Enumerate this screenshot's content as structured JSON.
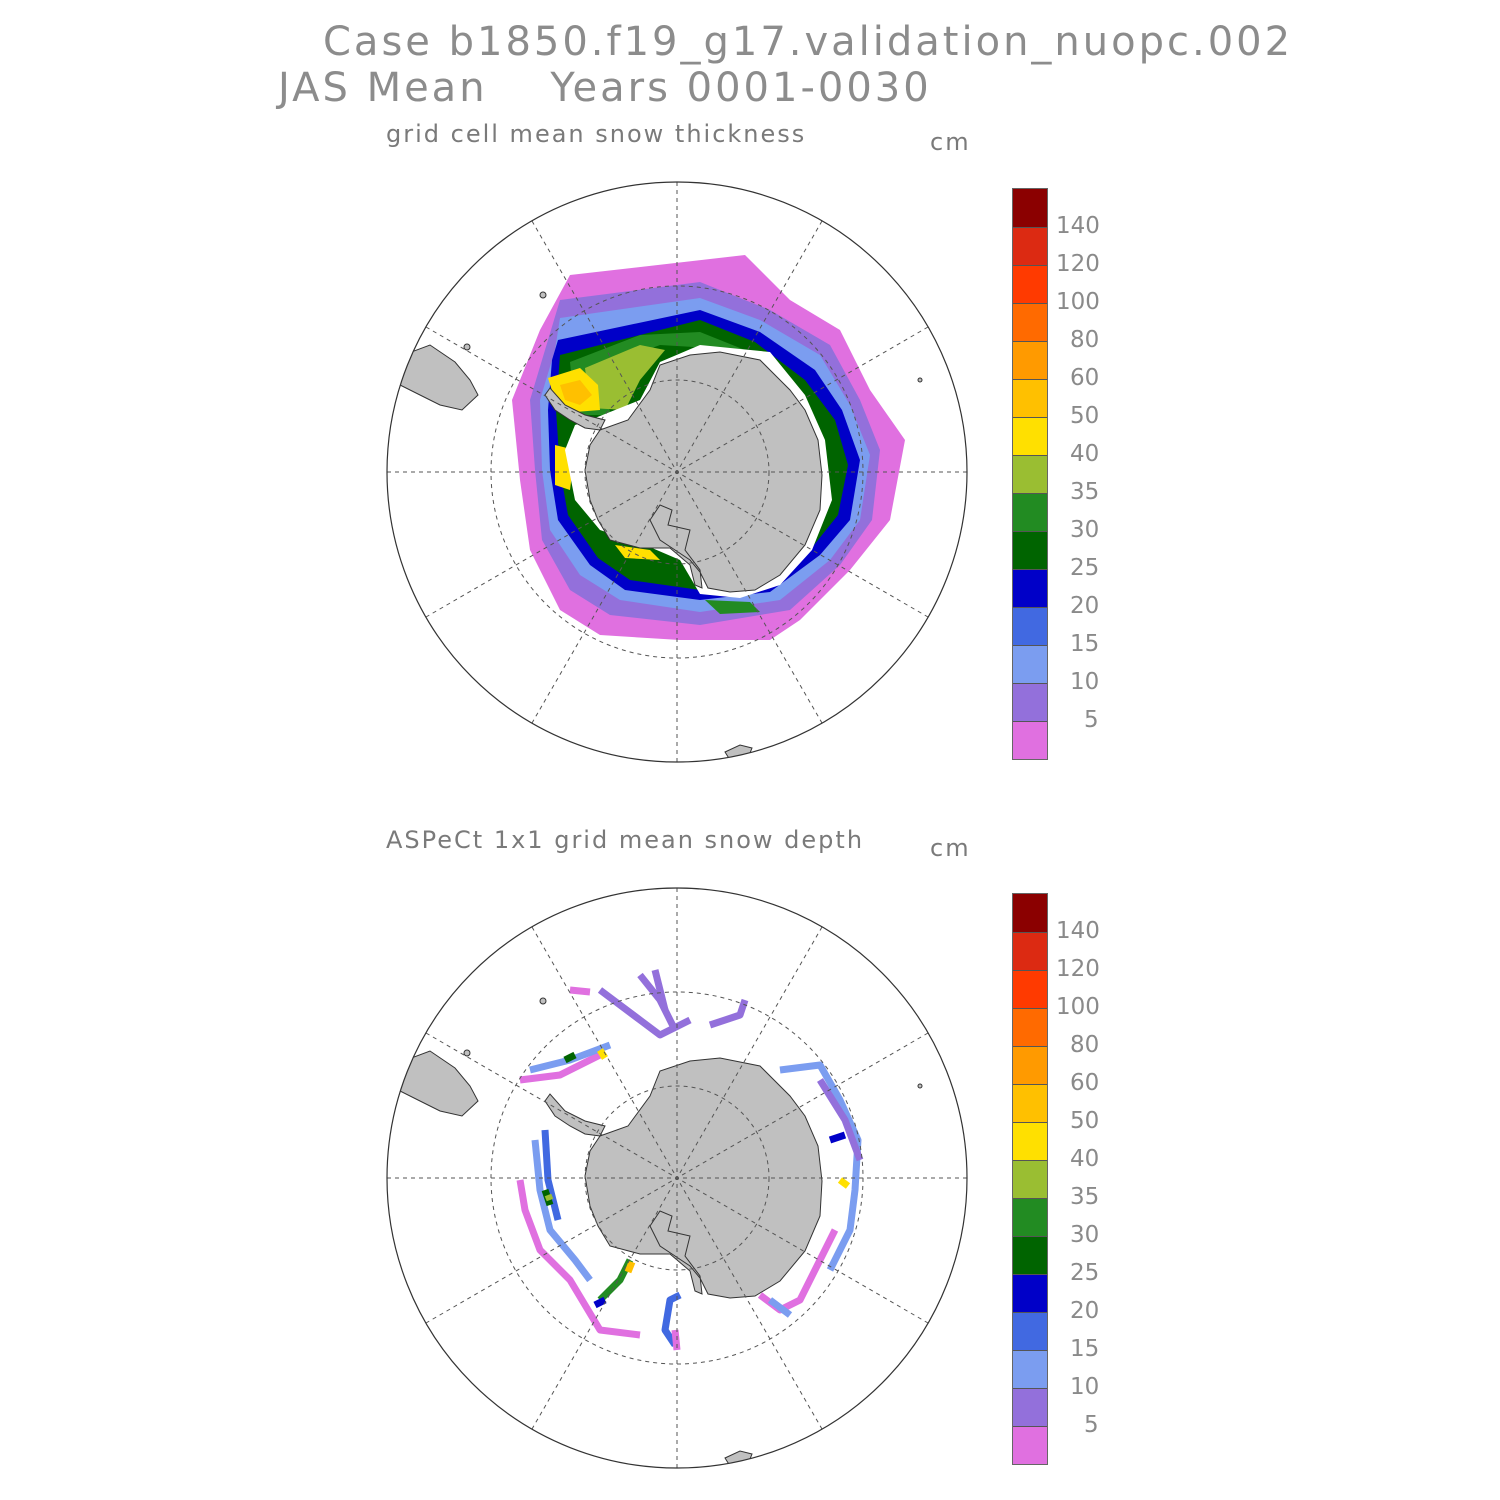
{
  "title": {
    "line1": "Case b1850.f19_g17.validation_nuopc.002",
    "line2": "JAS Mean    Years 0001-0030"
  },
  "panels": [
    {
      "title": "grid cell mean snow thickness",
      "unit": "cm"
    },
    {
      "title": "ASPeCt 1x1 grid mean snow depth",
      "unit": "cm"
    }
  ],
  "colorbar": {
    "labels": [
      "140",
      "120",
      "100",
      "80",
      "60",
      "50",
      "40",
      "35",
      "30",
      "25",
      "20",
      "15",
      "10",
      "5"
    ],
    "colors": [
      "#8b0000",
      "#dc2a12",
      "#ff3a00",
      "#ff6a00",
      "#ff9a00",
      "#ffc000",
      "#ffe000",
      "#9abe32",
      "#228b22",
      "#006400",
      "#0000c8",
      "#4169e1",
      "#7b9df0",
      "#9370db",
      "#e070e0"
    ]
  },
  "colors": {
    "land": "#c0c0c0",
    "grid": "#555555"
  }
}
